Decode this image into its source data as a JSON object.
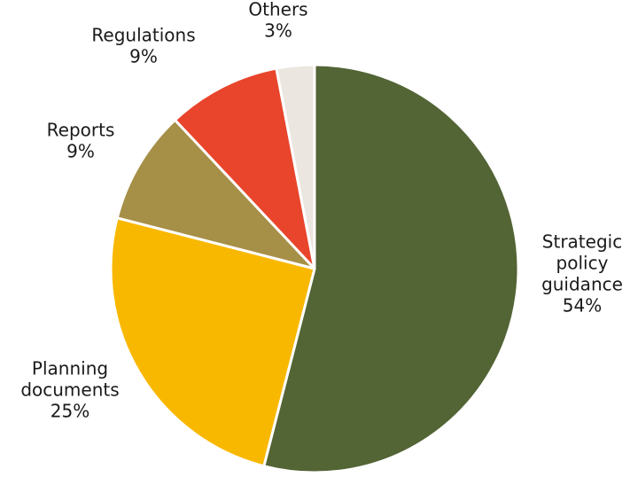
{
  "chart_data": {
    "type": "pie",
    "title": "",
    "categories": [
      "Strategic policy guidance",
      "Planning documents",
      "Reports",
      "Regulations",
      "Others"
    ],
    "values": [
      54,
      25,
      9,
      9,
      3
    ],
    "value_labels": [
      "54%",
      "25%",
      "9%",
      "9%",
      "3%"
    ],
    "colors": [
      "#536435",
      "#F9B800",
      "#A68F47",
      "#E8452C",
      "#ECE6E0"
    ],
    "start_angle": "top (12 o'clock)",
    "direction": "clockwise",
    "legend": "none",
    "slice_labels": [
      {
        "lines": [
          "Strategic",
          "policy",
          "guidance"
        ],
        "value": "54%"
      },
      {
        "lines": [
          "Planning",
          "documents"
        ],
        "value": "25%"
      },
      {
        "lines": [
          "Reports"
        ],
        "value": "9%"
      },
      {
        "lines": [
          "Regulations"
        ],
        "value": "9%"
      },
      {
        "lines": [
          "Others"
        ],
        "value": "3%"
      }
    ]
  }
}
